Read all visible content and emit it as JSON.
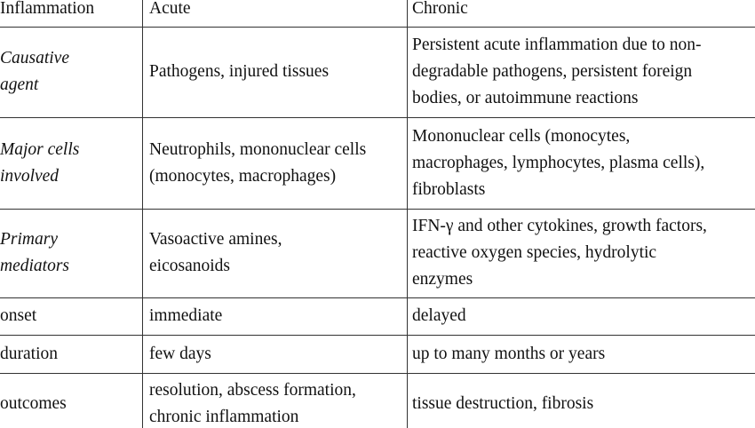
{
  "table": {
    "header": [
      "Inflammation",
      "Acute",
      "Chronic"
    ],
    "rows": [
      [
        [
          "Causative",
          "agent"
        ],
        [
          "Pathogens, injured tissues"
        ],
        [
          "Persistent acute inflammation due to non-",
          "degradable pathogens, persistent foreign",
          "bodies, or autoimmune reactions"
        ]
      ],
      [
        [
          "Major cells",
          "involved"
        ],
        [
          "Neutrophils, mononuclear cells",
          "(monocytes, macrophages)"
        ],
        [
          "Mononuclear cells (monocytes,",
          "macrophages, lymphocytes, plasma cells),",
          "fibroblasts"
        ]
      ],
      [
        [
          "Primary",
          "mediators"
        ],
        [
          "Vasoactive amines,",
          "eicosanoids"
        ],
        [
          "IFN-γ and other cytokines, growth factors,",
          "reactive oxygen species, hydrolytic",
          "enzymes"
        ]
      ],
      [
        [
          "onset"
        ],
        [
          "immediate"
        ],
        [
          "delayed"
        ]
      ],
      [
        [
          "duration"
        ],
        [
          "few days"
        ],
        [
          "up to many months or years"
        ]
      ],
      [
        [
          "outcomes"
        ],
        [
          "resolution, abscess formation,",
          "chronic inflammation"
        ],
        [
          "tissue destruction, fibrosis"
        ]
      ]
    ]
  }
}
